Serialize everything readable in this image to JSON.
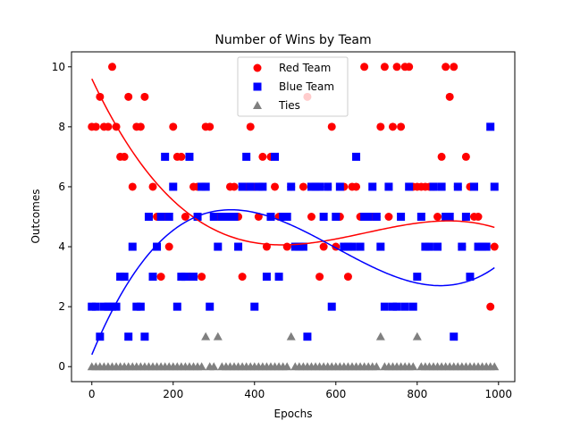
{
  "chart_data": {
    "type": "scatter",
    "title": "Number of Wins by Team",
    "xlabel": "Epochs",
    "ylabel": "Outcomes",
    "xlim": [
      -50,
      1040
    ],
    "ylim": [
      -0.5,
      10.5
    ],
    "xticks": [
      0,
      200,
      400,
      600,
      800,
      1000
    ],
    "yticks": [
      0,
      2,
      4,
      6,
      8,
      10
    ],
    "grid": false,
    "legend_position": "top-center",
    "series": [
      {
        "name": "Red Team",
        "marker": "circle",
        "color": "#ff0000",
        "x": [
          0,
          10,
          20,
          30,
          40,
          50,
          60,
          70,
          80,
          90,
          100,
          110,
          120,
          130,
          140,
          150,
          160,
          170,
          180,
          190,
          200,
          210,
          220,
          230,
          240,
          250,
          260,
          270,
          280,
          290,
          300,
          310,
          320,
          330,
          340,
          350,
          360,
          370,
          380,
          390,
          400,
          410,
          420,
          430,
          440,
          450,
          460,
          470,
          480,
          490,
          500,
          510,
          520,
          530,
          540,
          550,
          560,
          570,
          580,
          590,
          600,
          610,
          620,
          630,
          640,
          650,
          660,
          670,
          680,
          690,
          700,
          710,
          720,
          730,
          740,
          750,
          760,
          770,
          780,
          790,
          800,
          810,
          820,
          830,
          840,
          850,
          860,
          870,
          880,
          890,
          900,
          910,
          920,
          930,
          940,
          950,
          960,
          970,
          980,
          990
        ],
        "y": [
          8,
          8,
          9,
          8,
          8,
          10,
          8,
          7,
          7,
          9,
          6,
          8,
          8,
          9,
          5,
          6,
          5,
          3,
          5,
          4,
          8,
          7,
          7,
          5,
          3,
          6,
          6,
          3,
          8,
          8,
          5,
          5,
          5,
          5,
          6,
          6,
          5,
          3,
          6,
          8,
          6,
          5,
          7,
          4,
          7,
          6,
          5,
          5,
          4,
          6,
          4,
          4,
          6,
          9,
          5,
          6,
          3,
          4,
          6,
          8,
          4,
          5,
          6,
          3,
          6,
          6,
          5,
          10,
          5,
          5,
          5,
          8,
          10,
          5,
          8,
          10,
          8,
          10,
          10,
          6,
          6,
          6,
          6,
          6,
          6,
          5,
          7,
          10,
          9,
          10,
          6,
          4,
          7,
          6,
          5,
          5,
          4,
          4,
          2,
          4
        ]
      },
      {
        "name": "Blue Team",
        "marker": "square",
        "color": "#0000ff",
        "x": [
          0,
          10,
          20,
          30,
          40,
          50,
          60,
          70,
          80,
          90,
          100,
          110,
          120,
          130,
          140,
          150,
          160,
          170,
          180,
          190,
          200,
          210,
          220,
          230,
          240,
          250,
          260,
          270,
          280,
          290,
          300,
          310,
          320,
          330,
          340,
          350,
          360,
          370,
          380,
          390,
          400,
          410,
          420,
          430,
          440,
          450,
          460,
          470,
          480,
          490,
          500,
          510,
          520,
          530,
          540,
          550,
          560,
          570,
          580,
          590,
          600,
          610,
          620,
          630,
          640,
          650,
          660,
          670,
          680,
          690,
          700,
          710,
          720,
          730,
          740,
          750,
          760,
          770,
          780,
          790,
          800,
          810,
          820,
          830,
          840,
          850,
          860,
          870,
          880,
          890,
          900,
          910,
          920,
          930,
          940,
          950,
          960,
          970,
          980,
          990
        ],
        "y": [
          2,
          2,
          1,
          2,
          2,
          2,
          2,
          3,
          3,
          1,
          4,
          2,
          2,
          1,
          5,
          3,
          4,
          5,
          7,
          5,
          6,
          2,
          3,
          3,
          7,
          3,
          5,
          6,
          6,
          2,
          5,
          4,
          5,
          5,
          5,
          5,
          4,
          6,
          7,
          6,
          2,
          6,
          6,
          3,
          5,
          7,
          3,
          5,
          5,
          6,
          4,
          4,
          4,
          1,
          6,
          6,
          6,
          5,
          6,
          2,
          5,
          6,
          4,
          4,
          4,
          7,
          4,
          5,
          5,
          6,
          5,
          4,
          2,
          6,
          2,
          2,
          5,
          2,
          6,
          2,
          3,
          5,
          4,
          4,
          6,
          4,
          6,
          5,
          5,
          1,
          6,
          4,
          5,
          3,
          6,
          4,
          4,
          4,
          8,
          6
        ]
      },
      {
        "name": "Ties",
        "marker": "triangle",
        "color": "#808080",
        "x": [
          0,
          10,
          20,
          30,
          40,
          50,
          60,
          70,
          80,
          90,
          100,
          110,
          120,
          130,
          140,
          150,
          160,
          170,
          180,
          190,
          200,
          210,
          220,
          230,
          240,
          250,
          260,
          270,
          280,
          290,
          300,
          310,
          320,
          330,
          340,
          350,
          360,
          370,
          380,
          390,
          400,
          410,
          420,
          430,
          440,
          450,
          460,
          470,
          480,
          490,
          500,
          510,
          520,
          530,
          540,
          550,
          560,
          570,
          580,
          590,
          600,
          610,
          620,
          630,
          640,
          650,
          660,
          670,
          680,
          690,
          700,
          710,
          720,
          730,
          740,
          750,
          760,
          770,
          780,
          790,
          800,
          810,
          820,
          830,
          840,
          850,
          860,
          870,
          880,
          890,
          900,
          910,
          920,
          930,
          940,
          950,
          960,
          970,
          980,
          990
        ],
        "y": [
          0,
          0,
          0,
          0,
          0,
          0,
          0,
          0,
          0,
          0,
          0,
          0,
          0,
          0,
          0,
          0,
          0,
          0,
          0,
          0,
          0,
          0,
          0,
          0,
          0,
          0,
          0,
          0,
          1,
          0,
          0,
          1,
          0,
          0,
          0,
          0,
          0,
          0,
          0,
          0,
          0,
          0,
          0,
          0,
          0,
          0,
          0,
          0,
          0,
          1,
          0,
          0,
          0,
          0,
          0,
          0,
          0,
          0,
          0,
          0,
          0,
          0,
          0,
          0,
          0,
          0,
          0,
          0,
          0,
          0,
          0,
          1,
          0,
          0,
          0,
          0,
          0,
          0,
          0,
          0,
          1,
          0,
          0,
          0,
          0,
          0,
          0,
          0,
          0,
          0,
          0,
          0,
          0,
          0,
          0,
          0,
          0,
          0,
          0,
          0
        ]
      }
    ],
    "trend_lines": [
      {
        "series": "Red Team",
        "color": "#ff0000",
        "degree": 3,
        "coefficients": [
          9.6,
          -0.0288,
          4.72e-05,
          -2.34e-08
        ]
      },
      {
        "series": "Blue Team",
        "color": "#0000ff",
        "degree": 3,
        "coefficients": [
          0.4,
          0.0326,
          -6.67e-05,
          3.71e-08
        ]
      }
    ]
  }
}
